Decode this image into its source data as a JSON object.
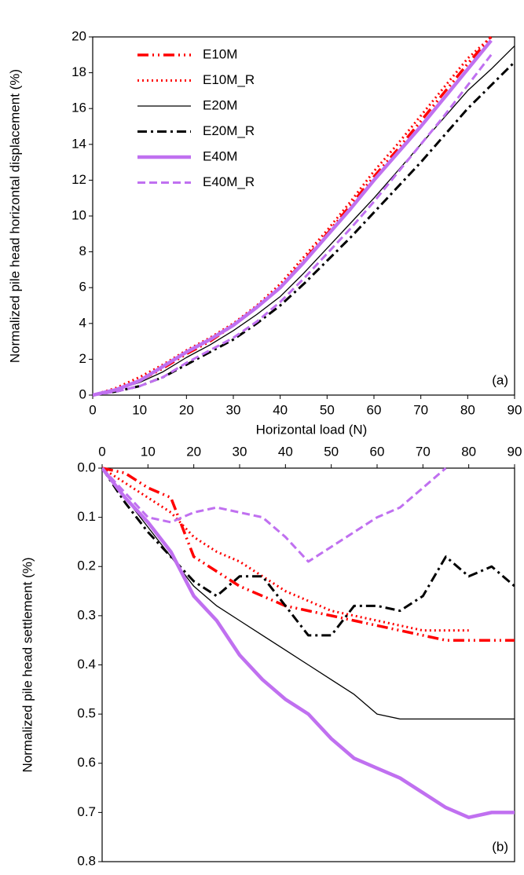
{
  "chart_data": [
    {
      "type": "line",
      "x_label": "Horizontal load (N)",
      "y_label": "Normalized  pile head horizontal displacement (%)",
      "annotation": "(a)",
      "legend": "upper left",
      "xaxis_position": "bottom",
      "x": [
        0,
        5,
        10,
        15,
        20,
        25,
        30,
        35,
        40,
        45,
        50,
        55,
        60,
        65,
        70,
        75,
        80,
        85,
        90
      ],
      "xlim": [
        0,
        90
      ],
      "xticks": [
        0,
        10,
        20,
        30,
        40,
        50,
        60,
        70,
        80,
        90
      ],
      "ylim": [
        0,
        20
      ],
      "yticks": [
        0,
        2,
        4,
        6,
        8,
        10,
        12,
        14,
        16,
        18,
        20
      ],
      "series": [
        {
          "name": "E10M",
          "color": "#ff0000",
          "style": "dash-dot-dot",
          "values": [
            0,
            0.3,
            0.8,
            1.5,
            2.3,
            3.0,
            3.9,
            4.9,
            6.0,
            7.5,
            9.0,
            10.6,
            12.2,
            13.7,
            15.3,
            16.9,
            18.5,
            20.0,
            null
          ]
        },
        {
          "name": "E10M_R",
          "color": "#ff0000",
          "style": "dotted",
          "values": [
            0,
            0.4,
            1.0,
            1.7,
            2.5,
            3.2,
            4.0,
            5.0,
            6.2,
            7.7,
            9.2,
            10.8,
            12.5,
            14.0,
            15.6,
            17.2,
            18.8,
            20.0,
            null
          ]
        },
        {
          "name": "E20M",
          "color": "#000000",
          "style": "thin",
          "values": [
            0,
            0.3,
            0.7,
            1.3,
            2.1,
            2.8,
            3.6,
            4.5,
            5.5,
            6.8,
            8.2,
            9.6,
            11.0,
            12.5,
            14.0,
            15.5,
            17.0,
            18.2,
            19.5
          ]
        },
        {
          "name": "E20M_R",
          "color": "#000000",
          "style": "dash-dot",
          "values": [
            0,
            0.2,
            0.5,
            1.0,
            1.7,
            2.4,
            3.1,
            4.0,
            5.0,
            6.2,
            7.5,
            8.8,
            10.2,
            11.6,
            13.0,
            14.5,
            16.0,
            17.3,
            18.6
          ]
        },
        {
          "name": "E40M",
          "color": "#c070f0",
          "style": "thick",
          "values": [
            0,
            0.3,
            0.8,
            1.6,
            2.4,
            3.1,
            3.9,
            4.9,
            6.0,
            7.4,
            8.9,
            10.4,
            12.0,
            13.5,
            15.0,
            16.6,
            18.2,
            19.8,
            null
          ]
        },
        {
          "name": "E40M_R",
          "color": "#c070f0",
          "style": "dashed",
          "values": [
            0,
            0.2,
            0.5,
            1.0,
            1.8,
            2.5,
            3.2,
            4.1,
            5.2,
            6.5,
            7.9,
            9.3,
            10.8,
            12.4,
            14.0,
            15.6,
            17.3,
            19.0,
            null
          ]
        }
      ]
    },
    {
      "type": "line",
      "y_label": "Normalized  pile head  settlement (%)",
      "annotation": "(b)",
      "xaxis_position": "top",
      "y_inverted": true,
      "x": [
        0,
        5,
        10,
        15,
        20,
        25,
        30,
        35,
        40,
        45,
        50,
        55,
        60,
        65,
        70,
        75,
        80,
        85,
        90
      ],
      "xlim": [
        0,
        90
      ],
      "xticks": [
        0,
        10,
        20,
        30,
        40,
        50,
        60,
        70,
        80,
        90
      ],
      "ylim": [
        0,
        0.8
      ],
      "yticks": [
        {
          "value": 0,
          "label": "0.0"
        },
        0.1,
        0.2,
        0.3,
        0.4,
        0.5,
        0.6,
        0.7,
        0.8
      ],
      "series": [
        {
          "color": "#ff0000",
          "style": "dash-dot-dot",
          "values": [
            0,
            0.01,
            0.04,
            0.06,
            0.18,
            0.21,
            0.24,
            0.26,
            0.28,
            0.29,
            0.3,
            0.31,
            0.32,
            0.33,
            0.34,
            0.35,
            0.35,
            0.35,
            0.35
          ]
        },
        {
          "color": "#ff0000",
          "style": "dotted",
          "values": [
            0,
            0.03,
            0.06,
            0.09,
            0.14,
            0.17,
            0.19,
            0.22,
            0.25,
            0.27,
            0.29,
            0.3,
            0.31,
            0.32,
            0.33,
            0.33,
            0.33,
            null,
            null
          ]
        },
        {
          "color": "#000000",
          "style": "thin",
          "values": [
            0,
            0.06,
            0.12,
            0.18,
            0.24,
            0.28,
            0.31,
            0.34,
            0.37,
            0.4,
            0.43,
            0.46,
            0.5,
            0.51,
            0.51,
            0.51,
            0.51,
            0.51,
            0.51
          ]
        },
        {
          "color": "#000000",
          "style": "dash-dot",
          "values": [
            0,
            0.07,
            0.13,
            0.18,
            0.23,
            0.26,
            0.22,
            0.22,
            0.28,
            0.34,
            0.34,
            0.28,
            0.28,
            0.29,
            0.26,
            0.18,
            0.22,
            0.2,
            0.24
          ]
        },
        {
          "color": "#c070f0",
          "style": "thick",
          "values": [
            0,
            0.06,
            0.11,
            0.17,
            0.26,
            0.31,
            0.38,
            0.43,
            0.47,
            0.5,
            0.55,
            0.59,
            0.61,
            0.63,
            0.66,
            0.69,
            0.71,
            0.7,
            0.7
          ]
        },
        {
          "color": "#c070f0",
          "style": "dashed",
          "values": [
            0,
            0.05,
            0.1,
            0.11,
            0.09,
            0.08,
            0.09,
            0.1,
            0.14,
            0.19,
            0.16,
            0.13,
            0.1,
            0.08,
            0.04,
            0.0,
            null,
            null,
            null
          ]
        }
      ]
    }
  ]
}
